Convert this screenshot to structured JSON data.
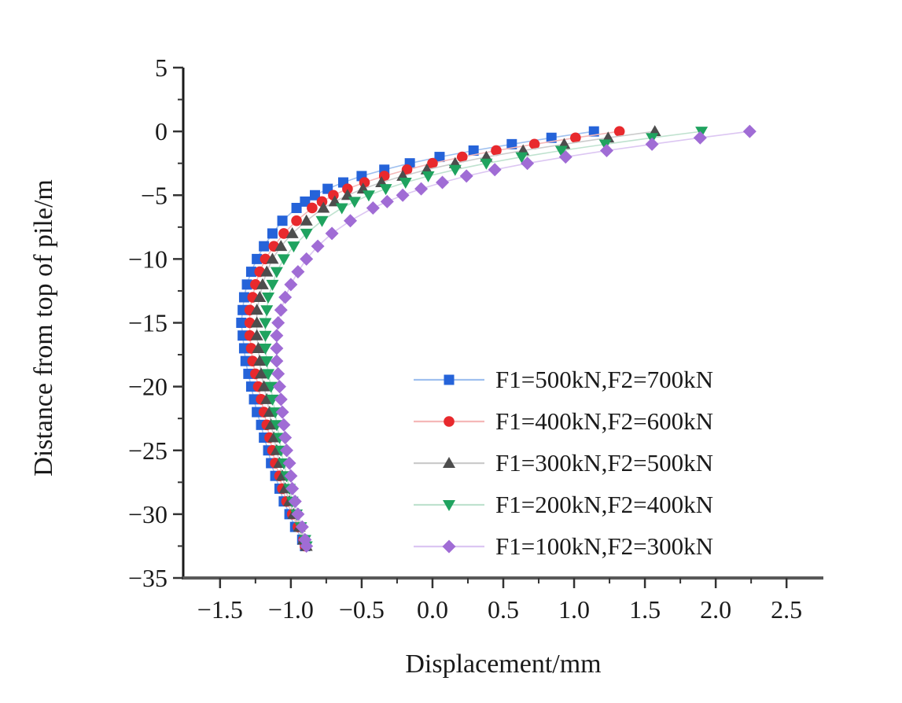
{
  "chart_data": {
    "type": "line",
    "title": "",
    "xlabel": "Displacement/mm",
    "ylabel": "Distance from top of pile/m",
    "xlim": [
      -1.76,
      2.76
    ],
    "ylim": [
      -35,
      5
    ],
    "grid": false,
    "legend_position": "inside-lower-right",
    "x_ticks": [
      {
        "v": -1.5,
        "label": "−1.5"
      },
      {
        "v": -1.0,
        "label": "−1.0"
      },
      {
        "v": -0.5,
        "label": "−0.5"
      },
      {
        "v": 0.0,
        "label": "0.0"
      },
      {
        "v": 0.5,
        "label": "0.5"
      },
      {
        "v": 1.0,
        "label": "1.0"
      },
      {
        "v": 1.5,
        "label": "1.5"
      },
      {
        "v": 2.0,
        "label": "2.0"
      },
      {
        "v": 2.5,
        "label": "2.5"
      }
    ],
    "y_ticks": [
      {
        "v": 5,
        "label": "5"
      },
      {
        "v": 0,
        "label": "0"
      },
      {
        "v": -5,
        "label": "−5"
      },
      {
        "v": -10,
        "label": "−10"
      },
      {
        "v": -15,
        "label": "−15"
      },
      {
        "v": -20,
        "label": "−20"
      },
      {
        "v": -25,
        "label": "−25"
      },
      {
        "v": -30,
        "label": "−30"
      },
      {
        "v": -35,
        "label": "−35"
      }
    ],
    "depths_m": [
      0,
      -0.5,
      -1,
      -1.5,
      -2,
      -2.5,
      -3,
      -3.5,
      -4,
      -4.5,
      -5,
      -5.5,
      -6,
      -7,
      -8,
      -9,
      -10,
      -11,
      -12,
      -13,
      -14,
      -15,
      -16,
      -17,
      -18,
      -19,
      -20,
      -21,
      -22,
      -23,
      -24,
      -25,
      -26,
      -27,
      -28,
      -29,
      -30,
      -31,
      -32,
      -32.5
    ],
    "series": [
      {
        "label": "F1=500kN,F2=700kN",
        "marker": "square",
        "color": "#2563d9",
        "line_color": "#9fc0ef",
        "displacements_mm": [
          1.14,
          0.84,
          0.56,
          0.29,
          0.05,
          -0.16,
          -0.34,
          -0.5,
          -0.63,
          -0.74,
          -0.83,
          -0.9,
          -0.96,
          -1.06,
          -1.13,
          -1.19,
          -1.24,
          -1.28,
          -1.31,
          -1.33,
          -1.34,
          -1.35,
          -1.34,
          -1.33,
          -1.32,
          -1.3,
          -1.28,
          -1.26,
          -1.24,
          -1.21,
          -1.19,
          -1.16,
          -1.14,
          -1.11,
          -1.08,
          -1.05,
          -1.01,
          -0.97,
          -0.92,
          -0.9
        ]
      },
      {
        "label": "F1=400kN,F2=600kN",
        "marker": "circle",
        "color": "#e8292d",
        "line_color": "#f5b8b8",
        "displacements_mm": [
          1.32,
          1.01,
          0.72,
          0.45,
          0.21,
          0.0,
          -0.18,
          -0.34,
          -0.48,
          -0.6,
          -0.7,
          -0.78,
          -0.85,
          -0.96,
          -1.05,
          -1.12,
          -1.18,
          -1.22,
          -1.25,
          -1.27,
          -1.29,
          -1.29,
          -1.29,
          -1.28,
          -1.27,
          -1.25,
          -1.23,
          -1.21,
          -1.19,
          -1.17,
          -1.15,
          -1.13,
          -1.11,
          -1.08,
          -1.06,
          -1.03,
          -0.99,
          -0.95,
          -0.91,
          -0.9
        ]
      },
      {
        "label": "F1=300kN,F2=500kN",
        "marker": "triangle-up",
        "color": "#4d4d4d",
        "line_color": "#cccccc",
        "displacements_mm": [
          1.57,
          1.24,
          0.93,
          0.64,
          0.38,
          0.16,
          -0.04,
          -0.21,
          -0.36,
          -0.49,
          -0.6,
          -0.69,
          -0.77,
          -0.89,
          -0.99,
          -1.07,
          -1.13,
          -1.17,
          -1.2,
          -1.22,
          -1.24,
          -1.24,
          -1.24,
          -1.23,
          -1.22,
          -1.21,
          -1.19,
          -1.17,
          -1.15,
          -1.14,
          -1.12,
          -1.1,
          -1.08,
          -1.06,
          -1.04,
          -1.01,
          -0.98,
          -0.94,
          -0.91,
          -0.89
        ]
      },
      {
        "label": "F1=200kN,F2=400kN",
        "marker": "triangle-down",
        "color": "#1fa35f",
        "line_color": "#bfe2cf",
        "displacements_mm": [
          1.9,
          1.55,
          1.22,
          0.91,
          0.63,
          0.38,
          0.16,
          -0.03,
          -0.19,
          -0.33,
          -0.45,
          -0.55,
          -0.64,
          -0.78,
          -0.89,
          -0.98,
          -1.05,
          -1.1,
          -1.13,
          -1.16,
          -1.17,
          -1.18,
          -1.18,
          -1.18,
          -1.17,
          -1.16,
          -1.14,
          -1.13,
          -1.11,
          -1.1,
          -1.08,
          -1.07,
          -1.05,
          -1.03,
          -1.01,
          -0.99,
          -0.96,
          -0.93,
          -0.9,
          -0.89
        ]
      },
      {
        "label": "F1=100kN,F2=300kN",
        "marker": "diamond",
        "color": "#a06cd5",
        "line_color": "#dcc6f2",
        "displacements_mm": [
          2.24,
          1.89,
          1.55,
          1.23,
          0.94,
          0.67,
          0.44,
          0.24,
          0.07,
          -0.08,
          -0.21,
          -0.32,
          -0.42,
          -0.58,
          -0.71,
          -0.81,
          -0.89,
          -0.95,
          -1.0,
          -1.04,
          -1.07,
          -1.09,
          -1.1,
          -1.1,
          -1.1,
          -1.09,
          -1.08,
          -1.07,
          -1.06,
          -1.05,
          -1.04,
          -1.03,
          -1.01,
          -1.0,
          -0.99,
          -0.97,
          -0.95,
          -0.92,
          -0.9,
          -0.89
        ]
      }
    ]
  }
}
